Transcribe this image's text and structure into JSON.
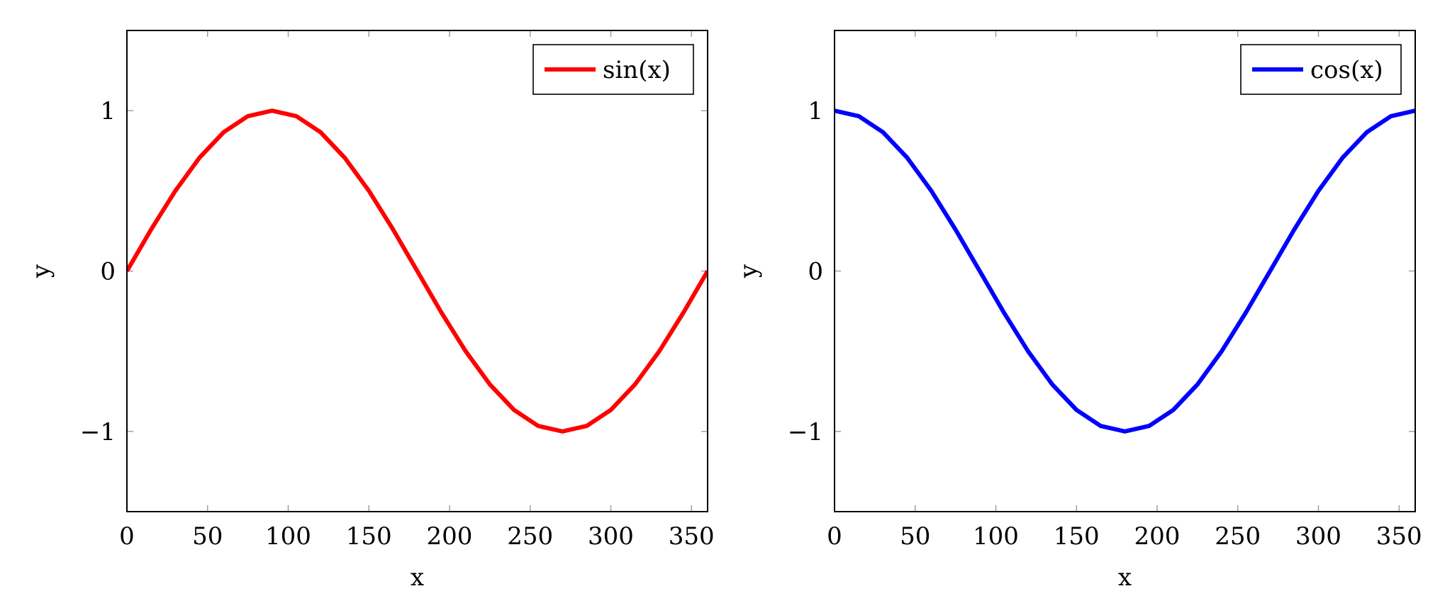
{
  "chart_data": [
    {
      "type": "line",
      "title": "",
      "xlabel": "x",
      "ylabel": "y",
      "xlim": [
        0,
        360
      ],
      "ylim": [
        -1.5,
        1.5
      ],
      "xticks": [
        0,
        50,
        100,
        150,
        200,
        250,
        300,
        350
      ],
      "xtick_labels": [
        "0",
        "50",
        "100",
        "150",
        "200",
        "250",
        "300",
        "350"
      ],
      "yticks": [
        -1,
        0,
        1
      ],
      "ytick_labels": [
        "−1",
        "0",
        "1"
      ],
      "grid": false,
      "legend_position": "top-right",
      "series": [
        {
          "name": "sin(x)",
          "color": "#ff0000",
          "x": [
            0,
            15,
            30,
            45,
            60,
            75,
            90,
            105,
            120,
            135,
            150,
            165,
            180,
            195,
            210,
            225,
            240,
            255,
            270,
            285,
            300,
            315,
            330,
            345,
            360
          ],
          "y": [
            0,
            0.259,
            0.5,
            0.707,
            0.866,
            0.966,
            1,
            0.966,
            0.866,
            0.707,
            0.5,
            0.259,
            0,
            -0.259,
            -0.5,
            -0.707,
            -0.866,
            -0.966,
            -1,
            -0.966,
            -0.866,
            -0.707,
            -0.5,
            -0.259,
            0
          ]
        }
      ]
    },
    {
      "type": "line",
      "title": "",
      "xlabel": "x",
      "ylabel": "y",
      "xlim": [
        0,
        360
      ],
      "ylim": [
        -1.5,
        1.5
      ],
      "xticks": [
        0,
        50,
        100,
        150,
        200,
        250,
        300,
        350
      ],
      "xtick_labels": [
        "0",
        "50",
        "100",
        "150",
        "200",
        "250",
        "300",
        "350"
      ],
      "yticks": [
        -1,
        0,
        1
      ],
      "ytick_labels": [
        "−1",
        "0",
        "1"
      ],
      "grid": false,
      "legend_position": "top-right",
      "series": [
        {
          "name": "cos(x)",
          "color": "#0000ff",
          "x": [
            0,
            15,
            30,
            45,
            60,
            75,
            90,
            105,
            120,
            135,
            150,
            165,
            180,
            195,
            210,
            225,
            240,
            255,
            270,
            285,
            300,
            315,
            330,
            345,
            360
          ],
          "y": [
            1,
            0.966,
            0.866,
            0.707,
            0.5,
            0.259,
            0,
            -0.259,
            -0.5,
            -0.707,
            -0.866,
            -0.966,
            -1,
            -0.966,
            -0.866,
            -0.707,
            -0.5,
            -0.259,
            0,
            0.259,
            0.5,
            0.707,
            0.866,
            0.966,
            1
          ]
        }
      ]
    }
  ]
}
